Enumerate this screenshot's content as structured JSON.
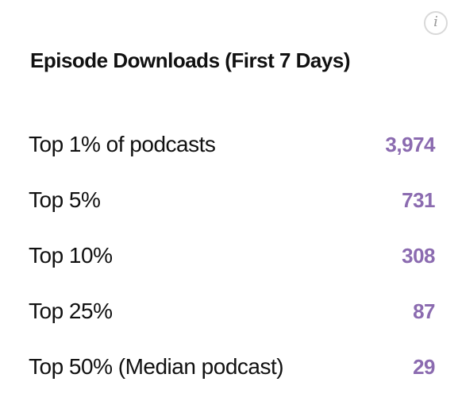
{
  "info_button": {
    "icon": "info-icon",
    "glyph": "i"
  },
  "title": "Episode Downloads (First 7 Days)",
  "accent_color": "#8b6bb0",
  "rows": [
    {
      "label": "Top 1% of podcasts",
      "value": "3,974"
    },
    {
      "label": "Top 5%",
      "value": "731"
    },
    {
      "label": "Top 10%",
      "value": "308"
    },
    {
      "label": "Top 25%",
      "value": "87"
    },
    {
      "label": "Top 50% (Median podcast)",
      "value": "29"
    }
  ]
}
